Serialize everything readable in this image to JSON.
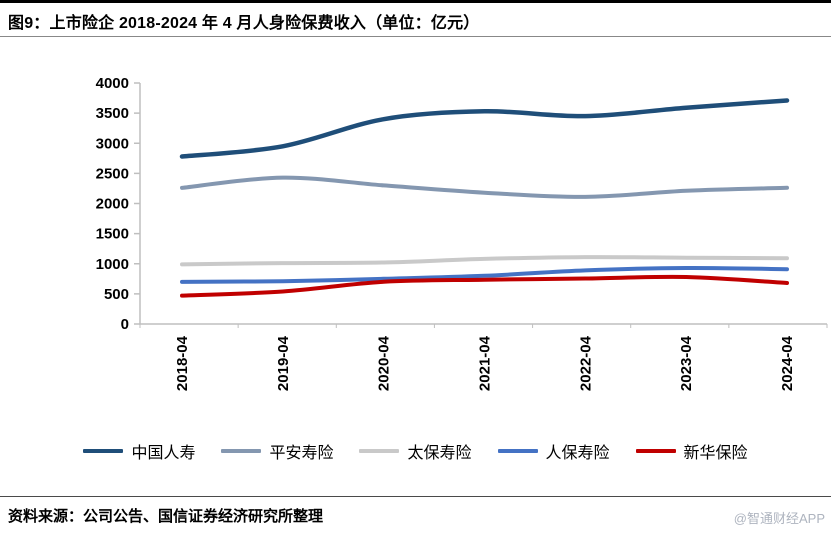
{
  "page": {
    "title": "图9：上市险企 2018-2024 年 4 月人身险保费收入（单位：亿元）",
    "source": "资料来源：公司公告、国信证券经济研究所整理",
    "watermark": "@智通财经APP"
  },
  "chart_data": {
    "type": "line",
    "title": "上市险企 2018-2024 年 4 月人身险保费收入",
    "unit": "亿元",
    "categories": [
      "2018-04",
      "2019-04",
      "2020-04",
      "2021-04",
      "2022-04",
      "2023-04",
      "2024-04"
    ],
    "series": [
      {
        "name": "中国人寿",
        "color": "#1F4E79",
        "values": [
          2780,
          2950,
          3400,
          3530,
          3450,
          3590,
          3710
        ]
      },
      {
        "name": "平安寿险",
        "color": "#8497B0",
        "values": [
          2260,
          2430,
          2300,
          2180,
          2110,
          2210,
          2260
        ]
      },
      {
        "name": "太保寿险",
        "color": "#C9C9C9",
        "values": [
          990,
          1010,
          1020,
          1080,
          1110,
          1100,
          1090
        ]
      },
      {
        "name": "人保寿险",
        "color": "#4472C4",
        "values": [
          700,
          710,
          750,
          800,
          890,
          930,
          910
        ]
      },
      {
        "name": "新华保险",
        "color": "#C00000",
        "values": [
          470,
          540,
          700,
          735,
          755,
          780,
          680
        ]
      }
    ],
    "ylim": [
      0,
      4000
    ],
    "ytick_step": 500,
    "yticks": [
      0,
      500,
      1000,
      1500,
      2000,
      2500,
      3000,
      3500,
      4000
    ],
    "grid": false,
    "legend_position": "bottom",
    "axis_color": "#BFBFBF"
  }
}
